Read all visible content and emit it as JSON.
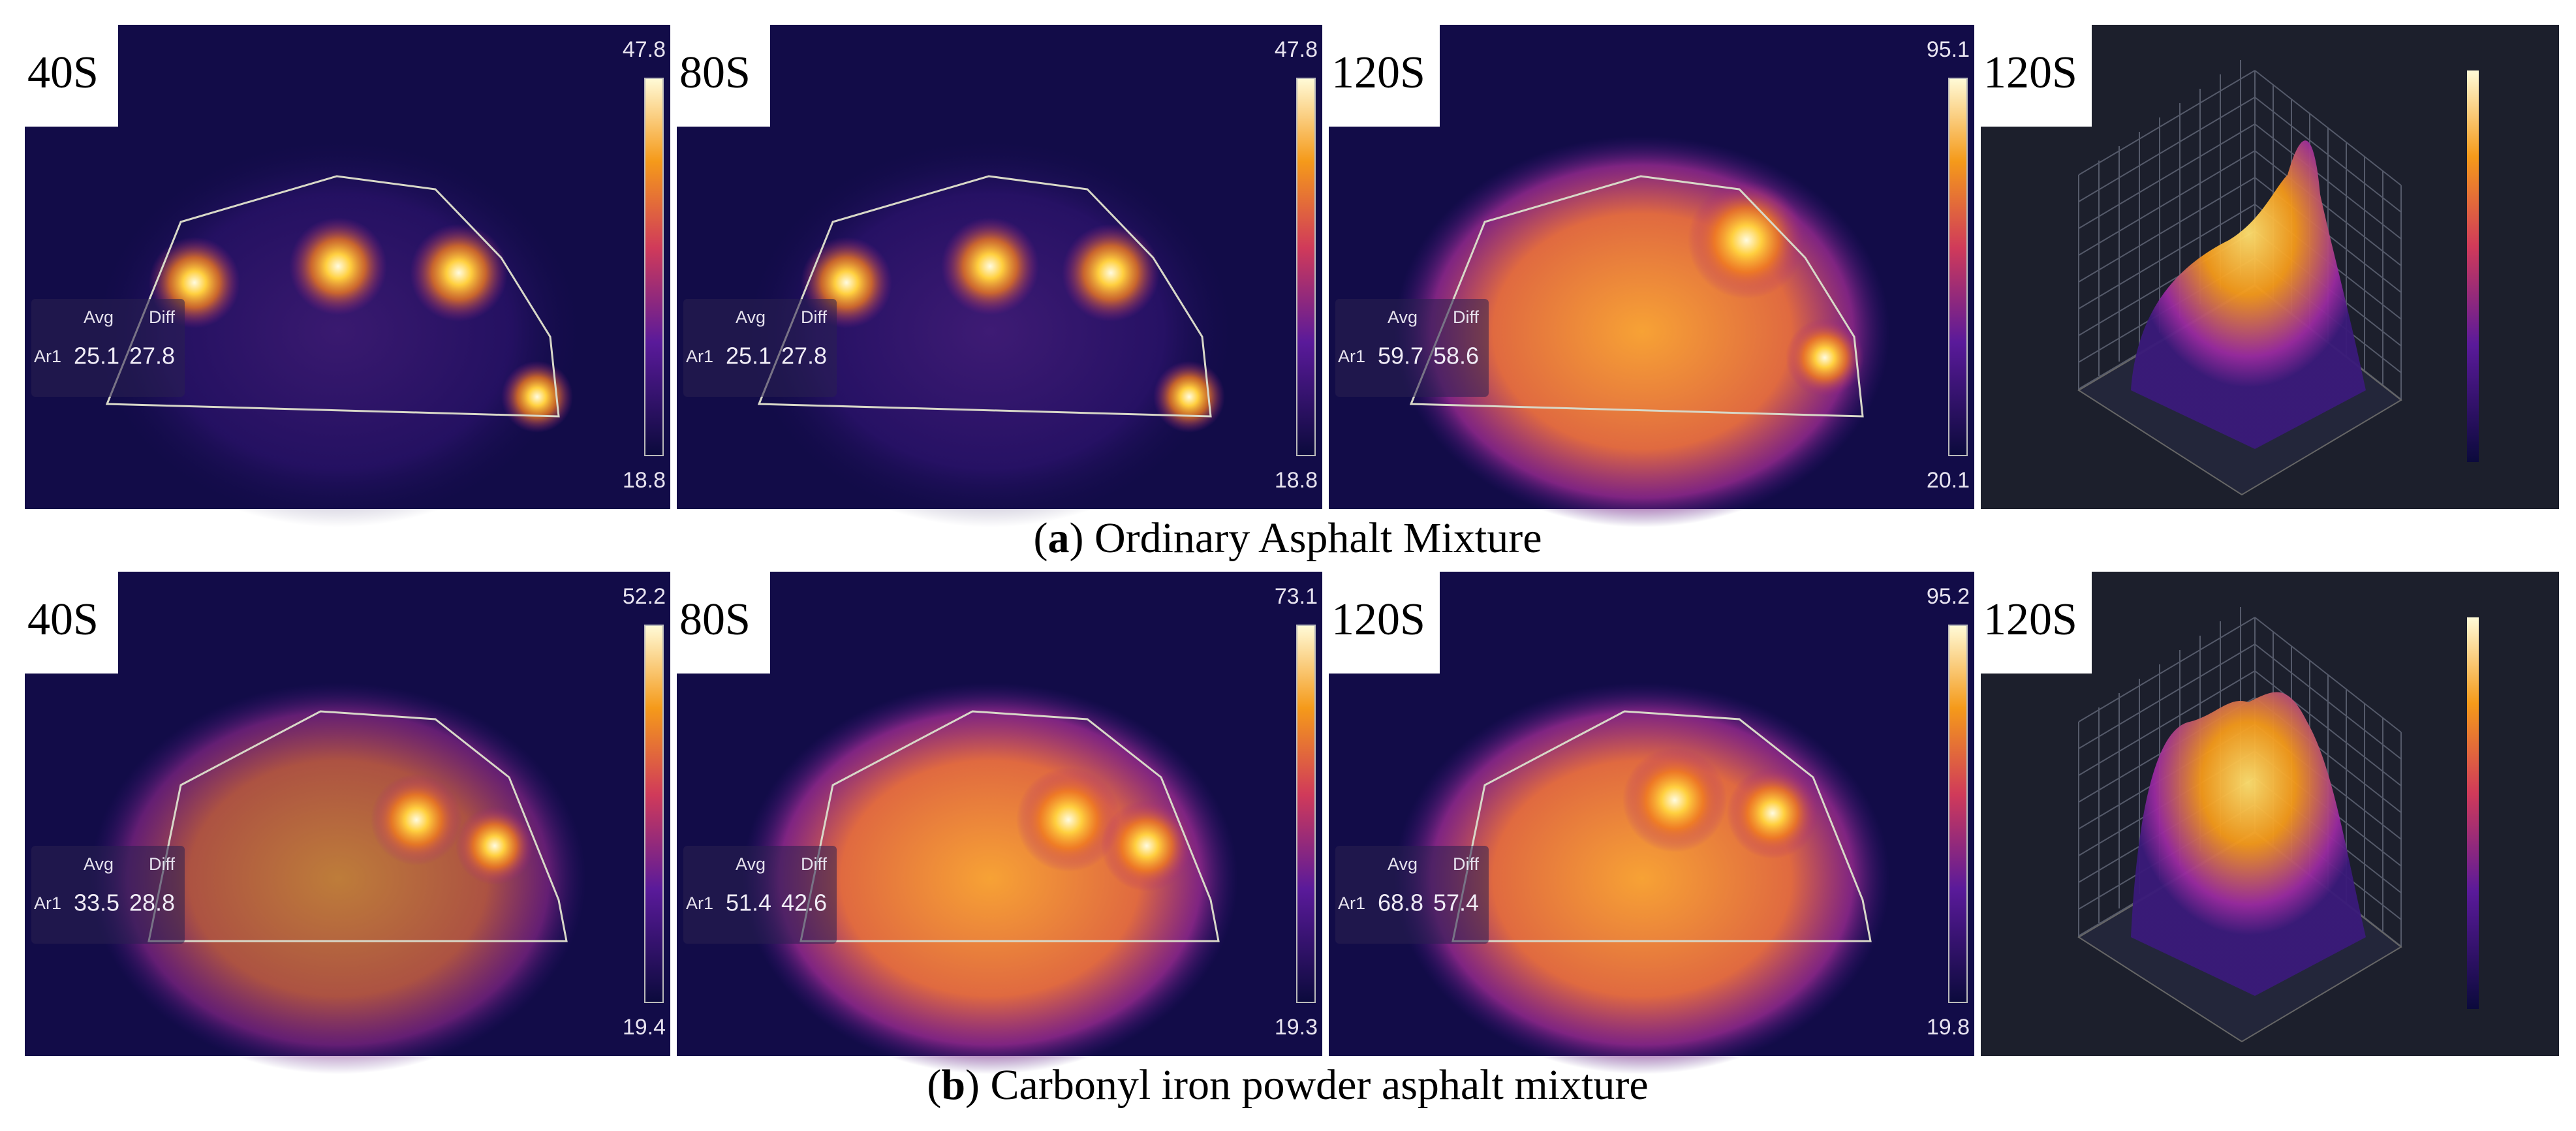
{
  "figure": {
    "rows": [
      {
        "caption": [
          "(",
          "a",
          ") Ordinary Asphalt Mixture"
        ],
        "panels": [
          {
            "time": "40S",
            "max": "47.8",
            "min": "18.8",
            "avg_label": "Avg",
            "diff_label": "Diff",
            "area": "Ar1",
            "avg": "25.1",
            "diff": "27.8"
          },
          {
            "time": "80S",
            "max": "47.8",
            "min": "18.8",
            "avg_label": "Avg",
            "diff_label": "Diff",
            "area": "Ar1",
            "avg": "25.1",
            "diff": "27.8"
          },
          {
            "time": "120S",
            "max": "95.1",
            "min": "20.1",
            "avg_label": "Avg",
            "diff_label": "Diff",
            "area": "Ar1",
            "avg": "59.7",
            "diff": "58.6"
          }
        ],
        "plot": {
          "time": "120S"
        }
      },
      {
        "caption": [
          "(",
          "b",
          ") Carbonyl iron powder asphalt mixture"
        ],
        "panels": [
          {
            "time": "40S",
            "max": "52.2",
            "min": "19.4",
            "avg_label": "Avg",
            "diff_label": "Diff",
            "area": "Ar1",
            "avg": "33.5",
            "diff": "28.8"
          },
          {
            "time": "80S",
            "max": "73.1",
            "min": "19.3",
            "avg_label": "Avg",
            "diff_label": "Diff",
            "area": "Ar1",
            "avg": "51.4",
            "diff": "42.6"
          },
          {
            "time": "120S",
            "max": "95.2",
            "min": "19.8",
            "avg_label": "Avg",
            "diff_label": "Diff",
            "area": "Ar1",
            "avg": "68.8",
            "diff": "57.4"
          }
        ],
        "plot": {
          "time": "120S"
        }
      }
    ]
  }
}
